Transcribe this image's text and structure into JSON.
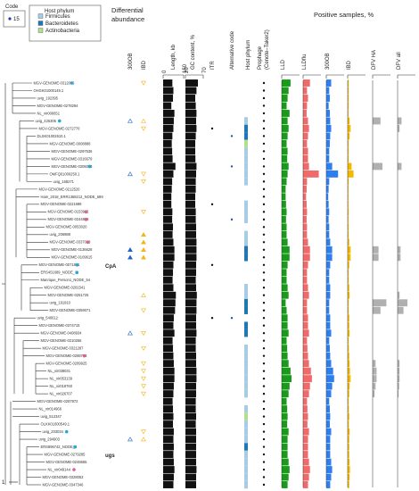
{
  "legend": {
    "code": {
      "title": "Code",
      "dot_value": "15"
    },
    "phylum": {
      "title": "Host phylum",
      "items": [
        {
          "label": "Firmicutes",
          "color": "#a6cde3"
        },
        {
          "label": "Bacteroidetes",
          "color": "#1f78b4"
        },
        {
          "label": "Actinobacteria",
          "color": "#b2df8a"
        }
      ]
    }
  },
  "headers": {
    "differential": "Differential\nabundance",
    "col_300ob": "300OB",
    "col_ibd": "IBD",
    "length": "Length, kb",
    "gc": "GC content, %",
    "itr": "ITR",
    "alt_code": "Alternative code",
    "host": "Host phylum",
    "prophage": "Prophage\n(Cenote–Taker2)",
    "positive": "Positive samples, %",
    "pos_cols": [
      "LLD",
      "LLDflu",
      "300OB",
      "IBD",
      "DFV HA",
      "DFV all"
    ]
  },
  "axes": {
    "length_ticks": [
      "0",
      "150"
    ],
    "gc_ticks": [
      "20",
      "70"
    ]
  },
  "annotations": {
    "cpa": "CpA",
    "ugs": "ugs",
    "scale": "1"
  },
  "colors": {
    "tree": "#333333",
    "bar": "#111111",
    "cyan_dot": "#29a8d8",
    "pink_dot": "#e0609b",
    "tri_blue": "#1f63c6",
    "tri_orange": "#f2b41a",
    "lld": "#1a9a1a",
    "lldflu": "#f06a6a",
    "ob300": "#2d7ff0",
    "ibd": "#f5b800",
    "dfv": "#b0b0b0",
    "label_purple": "#9a3dd6",
    "label_green": "#1e8a38",
    "label_red": "#d62020"
  },
  "genomes": [
    {
      "name": "MGV-GENOME-0312075",
      "code": "cyan",
      "ob": "",
      "ibd": "down",
      "len": 0.45,
      "gc": 0.7,
      "itr": false,
      "alt": false,
      "host": "",
      "pro": true,
      "p": [
        0.45,
        0.35,
        0.25,
        0.05,
        0,
        0
      ],
      "color": ""
    },
    {
      "name": "OHGK01000149.1",
      "code": "",
      "ob": "",
      "ibd": "",
      "len": 0.5,
      "gc": 0.62,
      "itr": false,
      "alt": false,
      "host": "",
      "pro": true,
      "p": [
        0.35,
        0.2,
        0.15,
        0.05,
        0,
        0
      ],
      "color": ""
    },
    {
      "name": "uvig_192395",
      "code": "",
      "ob": "",
      "ibd": "",
      "len": 0.48,
      "gc": 0.55,
      "itr": false,
      "alt": false,
      "host": "",
      "pro": true,
      "p": [
        0.3,
        0.25,
        0.18,
        0.05,
        0,
        0
      ],
      "color": ""
    },
    {
      "name": "MGV-GENOME-0278294",
      "code": "",
      "ob": "",
      "ibd": "",
      "len": 0.4,
      "gc": 0.58,
      "itr": false,
      "alt": false,
      "host": "",
      "pro": true,
      "p": [
        0.25,
        0.2,
        0.12,
        0.05,
        0,
        0
      ],
      "color": ""
    },
    {
      "name": "NL_vir006651",
      "code": "",
      "ob": "",
      "ibd": "",
      "len": 0.55,
      "gc": 0.62,
      "itr": false,
      "alt": false,
      "host": "",
      "pro": true,
      "p": [
        0.4,
        0.18,
        0.18,
        0.04,
        0,
        0
      ],
      "color": ""
    },
    {
      "name": "uvig_425305",
      "code": "cyan",
      "ob": "up_open",
      "ibd": "up_open",
      "len": 0.52,
      "gc": 0.6,
      "itr": false,
      "alt": false,
      "host": "firm",
      "pro": true,
      "p": [
        0.3,
        0.25,
        0.2,
        0.1,
        0.4,
        0.2
      ],
      "color": ""
    },
    {
      "name": "MGV-GENOME-0272770",
      "code": "",
      "ob": "",
      "ibd": "down",
      "len": 0.5,
      "gc": 0.62,
      "itr": true,
      "alt": false,
      "host": "bact",
      "pro": true,
      "p": [
        0.35,
        0.3,
        0.25,
        0.15,
        0,
        0.1
      ],
      "color": ""
    },
    {
      "name": "DLSK01002610.1",
      "code": "",
      "ob": "",
      "ibd": "",
      "len": 0.45,
      "gc": 0.58,
      "itr": false,
      "alt": true,
      "host": "bact",
      "pro": true,
      "p": [
        0.3,
        0.25,
        0.2,
        0.1,
        0,
        0
      ],
      "color": ""
    },
    {
      "name": "MGV-GENOME-0008888",
      "code": "",
      "ob": "",
      "ibd": "",
      "len": 0.42,
      "gc": 0.55,
      "itr": false,
      "alt": false,
      "host": "act",
      "pro": true,
      "p": [
        0.25,
        0.2,
        0.18,
        0.05,
        0,
        0
      ],
      "color": ""
    },
    {
      "name": "MGV-GENOME-0297536",
      "code": "",
      "ob": "",
      "ibd": "",
      "len": 0.44,
      "gc": 0.55,
      "itr": false,
      "alt": false,
      "host": "firm",
      "pro": true,
      "p": [
        0.3,
        0.25,
        0.15,
        0.05,
        0,
        0
      ],
      "color": ""
    },
    {
      "name": "MGV-GENOME-0316679",
      "code": "",
      "ob": "",
      "ibd": "",
      "len": 0.46,
      "gc": 0.56,
      "itr": false,
      "alt": false,
      "host": "firm",
      "pro": true,
      "p": [
        0.28,
        0.25,
        0.15,
        0.05,
        0,
        0
      ],
      "color": ""
    },
    {
      "name": "MGV-GENOME-0305083",
      "code": "cyan",
      "ob": "",
      "ibd": "",
      "len": 0.6,
      "gc": 0.62,
      "itr": false,
      "alt": true,
      "host": "firm",
      "pro": true,
      "p": [
        0.35,
        0.3,
        0.3,
        0.2,
        0.5,
        0.2
      ],
      "color": "purple"
    },
    {
      "name": "OMFQ01000250.1",
      "code": "",
      "ob": "up_open",
      "ibd": "down",
      "len": 0.5,
      "gc": 0.6,
      "itr": false,
      "alt": false,
      "host": "firm",
      "pro": true,
      "p": [
        0.3,
        0.8,
        0.6,
        0.3,
        0,
        0
      ],
      "color": ""
    },
    {
      "name": "uvig_168271",
      "code": "",
      "ob": "",
      "ibd": "down",
      "len": 0.44,
      "gc": 0.58,
      "itr": false,
      "alt": false,
      "host": "firm",
      "pro": true,
      "p": [
        0.25,
        0.2,
        0.15,
        0.05,
        0,
        0
      ],
      "color": ""
    },
    {
      "name": "MGV-GENOME-0212520",
      "code": "",
      "ob": "",
      "ibd": "",
      "len": 0.42,
      "gc": 0.58,
      "itr": false,
      "alt": false,
      "host": "",
      "pro": true,
      "p": [
        0.2,
        0.18,
        0.12,
        0.04,
        0,
        0
      ],
      "color": ""
    },
    {
      "name": "Ham_2018_ERR1368212_NODE_689",
      "code": "",
      "ob": "",
      "ibd": "",
      "len": 0.4,
      "gc": 0.55,
      "itr": false,
      "alt": false,
      "host": "",
      "pro": true,
      "p": [
        0.2,
        0.15,
        0.1,
        0.04,
        0,
        0
      ],
      "color": ""
    },
    {
      "name": "MGV-GENOME-0221689",
      "code": "",
      "ob": "",
      "ibd": "",
      "len": 0.4,
      "gc": 0.55,
      "itr": true,
      "alt": false,
      "host": "firm",
      "pro": true,
      "p": [
        0.22,
        0.18,
        0.12,
        0.04,
        0,
        0
      ],
      "color": ""
    },
    {
      "name": "MGV-GENOME-0153922",
      "code": "pink",
      "ob": "",
      "ibd": "down",
      "len": 0.45,
      "gc": 0.58,
      "itr": false,
      "alt": false,
      "host": "firm",
      "pro": true,
      "p": [
        0.25,
        0.2,
        0.15,
        0.05,
        0,
        0
      ],
      "color": ""
    },
    {
      "name": "MGV-GENOME-0244888",
      "code": "pink",
      "ob": "",
      "ibd": "",
      "len": 0.44,
      "gc": 0.58,
      "itr": false,
      "alt": true,
      "host": "firm",
      "pro": true,
      "p": [
        0.22,
        0.18,
        0.12,
        0.04,
        0,
        0
      ],
      "color": ""
    },
    {
      "name": "MGV-GENOME-0053020",
      "code": "",
      "ob": "",
      "ibd": "",
      "len": 0.48,
      "gc": 0.6,
      "itr": false,
      "alt": false,
      "host": "",
      "pro": true,
      "p": [
        0.25,
        0.2,
        0.15,
        0.05,
        0,
        0
      ],
      "color": ""
    },
    {
      "name": "uvig_206988",
      "code": "",
      "ob": "",
      "ibd": "up_solid",
      "len": 0.46,
      "gc": 0.6,
      "itr": false,
      "alt": false,
      "host": "firm",
      "pro": true,
      "p": [
        0.25,
        0.2,
        0.15,
        0.05,
        0,
        0
      ],
      "color": ""
    },
    {
      "name": "MGV-GENOME-0337028",
      "code": "pink",
      "ob": "",
      "ibd": "up_solid",
      "len": 0.5,
      "gc": 0.62,
      "itr": false,
      "alt": false,
      "host": "firm",
      "pro": true,
      "p": [
        0.3,
        0.25,
        0.2,
        0.08,
        0,
        0
      ],
      "color": ""
    },
    {
      "name": "MGV-GENOME-0136628",
      "code": "",
      "ob": "up_solid",
      "ibd": "up_solid",
      "len": 0.55,
      "gc": 0.62,
      "itr": false,
      "alt": false,
      "host": "bact",
      "pro": true,
      "p": [
        0.4,
        0.35,
        0.3,
        0.15,
        0.3,
        0.15
      ],
      "color": ""
    },
    {
      "name": "MGV-GENOME-0109615",
      "code": "",
      "ob": "up_solid",
      "ibd": "up_solid",
      "len": 0.55,
      "gc": 0.62,
      "itr": false,
      "alt": false,
      "host": "bact",
      "pro": true,
      "p": [
        0.4,
        0.35,
        0.3,
        0.15,
        0.3,
        0.15
      ],
      "color": ""
    },
    {
      "name": "MGV-GENOME-0071861",
      "code": "cyan",
      "ob": "",
      "ibd": "",
      "len": 0.5,
      "gc": 0.6,
      "itr": true,
      "alt": false,
      "host": "",
      "pro": true,
      "p": [
        0.3,
        0.25,
        0.2,
        0.08,
        0,
        0
      ],
      "color": ""
    },
    {
      "name": "ERS451689_NODE_11",
      "code": "cyan",
      "ob": "",
      "ibd": "",
      "len": 0.48,
      "gc": 0.6,
      "itr": false,
      "alt": false,
      "host": "",
      "pro": true,
      "p": [
        0.25,
        0.2,
        0.15,
        0.05,
        0,
        0
      ],
      "color": ""
    },
    {
      "name": "Manrique_Person1_NODE_54",
      "code": "",
      "ob": "",
      "ibd": "",
      "len": 0.46,
      "gc": 0.58,
      "itr": false,
      "alt": false,
      "host": "",
      "pro": true,
      "p": [
        0.25,
        0.2,
        0.15,
        0.05,
        0,
        0
      ],
      "color": ""
    },
    {
      "name": "MGV-GENOME-0281541",
      "code": "",
      "ob": "",
      "ibd": "",
      "len": 0.5,
      "gc": 0.6,
      "itr": false,
      "alt": false,
      "host": "firm",
      "pro": true,
      "p": [
        0.3,
        0.25,
        0.2,
        0.08,
        0,
        0
      ],
      "color": ""
    },
    {
      "name": "MGV-GENOME-0251725",
      "code": "",
      "ob": "",
      "ibd": "up_open",
      "len": 0.62,
      "gc": 0.64,
      "itr": false,
      "alt": false,
      "host": "firm",
      "pro": true,
      "p": [
        0.35,
        0.3,
        0.2,
        0.1,
        0,
        0.1
      ],
      "color": "green"
    },
    {
      "name": "uvig_191910",
      "code": "",
      "ob": "",
      "ibd": "",
      "len": 0.6,
      "gc": 0.62,
      "itr": false,
      "alt": false,
      "host": "bact",
      "pro": true,
      "p": [
        0.2,
        0.2,
        0.15,
        0.05,
        0.7,
        0.5
      ],
      "color": "red"
    },
    {
      "name": "MGV-GENOME-0359071",
      "code": "",
      "ob": "",
      "ibd": "down",
      "len": 0.58,
      "gc": 0.62,
      "itr": false,
      "alt": false,
      "host": "bact",
      "pro": true,
      "p": [
        0.25,
        0.2,
        0.15,
        0.05,
        0.4,
        0.3
      ],
      "color": "red"
    },
    {
      "name": "uvig_540612",
      "code": "",
      "ob": "",
      "ibd": "",
      "len": 0.52,
      "gc": 0.6,
      "itr": true,
      "alt": true,
      "host": "",
      "pro": true,
      "p": [
        0.3,
        0.25,
        0.2,
        0.08,
        0,
        0
      ],
      "color": ""
    },
    {
      "name": "MGV-GENOME-0374715",
      "code": "",
      "ob": "",
      "ibd": "",
      "len": 0.5,
      "gc": 0.6,
      "itr": false,
      "alt": false,
      "host": "bact",
      "pro": true,
      "p": [
        0.3,
        0.25,
        0.2,
        0.08,
        0,
        0
      ],
      "color": ""
    },
    {
      "name": "MGV-GENOME-0408934",
      "code": "",
      "ob": "up_open",
      "ibd": "down",
      "len": 0.55,
      "gc": 0.62,
      "itr": false,
      "alt": false,
      "host": "bact",
      "pro": true,
      "p": [
        0.35,
        0.3,
        0.25,
        0.1,
        0,
        0
      ],
      "color": ""
    },
    {
      "name": "MGV-GENOME-0210266",
      "code": "",
      "ob": "",
      "ibd": "",
      "len": 0.46,
      "gc": 0.58,
      "itr": false,
      "alt": false,
      "host": "",
      "pro": true,
      "p": [
        0.25,
        0.2,
        0.15,
        0.05,
        0,
        0
      ],
      "color": ""
    },
    {
      "name": "MGV-GENOME-0321287",
      "code": "",
      "ob": "",
      "ibd": "down",
      "len": 0.48,
      "gc": 0.58,
      "itr": false,
      "alt": false,
      "host": "firm",
      "pro": true,
      "p": [
        0.28,
        0.22,
        0.18,
        0.06,
        0,
        0
      ],
      "color": ""
    },
    {
      "name": "MGV-GENOME-0288753",
      "code": "pink",
      "ob": "",
      "ibd": "",
      "len": 0.5,
      "gc": 0.6,
      "itr": false,
      "alt": false,
      "host": "firm",
      "pro": true,
      "p": [
        0.3,
        0.25,
        0.2,
        0.08,
        0,
        0
      ],
      "color": ""
    },
    {
      "name": "MGV-GENOME-0289925",
      "code": "",
      "ob": "",
      "ibd": "down",
      "len": 0.52,
      "gc": 0.6,
      "itr": false,
      "alt": false,
      "host": "firm",
      "pro": true,
      "p": [
        0.35,
        0.3,
        0.25,
        0.1,
        0.15,
        0.1
      ],
      "color": ""
    },
    {
      "name": "NL_vir038031",
      "code": "",
      "ob": "",
      "ibd": "down",
      "len": 0.55,
      "gc": 0.62,
      "itr": false,
      "alt": false,
      "host": "firm",
      "pro": true,
      "p": [
        0.45,
        0.4,
        0.35,
        0.12,
        0.2,
        0.1
      ],
      "color": ""
    },
    {
      "name": "NL_vir053139",
      "code": "",
      "ob": "",
      "ibd": "down",
      "len": 0.55,
      "gc": 0.62,
      "itr": false,
      "alt": false,
      "host": "firm",
      "pro": true,
      "p": [
        0.5,
        0.45,
        0.4,
        0.15,
        0.2,
        0.1
      ],
      "color": ""
    },
    {
      "name": "NL_vir018760",
      "code": "",
      "ob": "",
      "ibd": "down",
      "len": 0.52,
      "gc": 0.6,
      "itr": false,
      "alt": false,
      "host": "firm",
      "pro": true,
      "p": [
        0.4,
        0.35,
        0.3,
        0.1,
        0.15,
        0.08
      ],
      "color": ""
    },
    {
      "name": "NL_vir026707",
      "code": "",
      "ob": "",
      "ibd": "down",
      "len": 0.5,
      "gc": 0.6,
      "itr": false,
      "alt": false,
      "host": "firm",
      "pro": true,
      "p": [
        0.35,
        0.3,
        0.25,
        0.08,
        0.1,
        0.05
      ],
      "color": ""
    },
    {
      "name": "MGV-GENOME-0287872",
      "code": "",
      "ob": "",
      "ibd": "",
      "len": 0.46,
      "gc": 0.58,
      "itr": false,
      "alt": false,
      "host": "",
      "pro": true,
      "p": [
        0.25,
        0.2,
        0.15,
        0.05,
        0,
        0
      ],
      "color": ""
    },
    {
      "name": "NL_vir014966",
      "code": "",
      "ob": "",
      "ibd": "",
      "len": 0.48,
      "gc": 0.58,
      "itr": false,
      "alt": false,
      "host": "firm",
      "pro": true,
      "p": [
        0.28,
        0.22,
        0.18,
        0.06,
        0,
        0
      ],
      "color": ""
    },
    {
      "name": "uvig_512347",
      "code": "",
      "ob": "",
      "ibd": "",
      "len": 0.5,
      "gc": 0.6,
      "itr": false,
      "alt": false,
      "host": "act",
      "pro": true,
      "p": [
        0.3,
        0.25,
        0.2,
        0.08,
        0,
        0
      ],
      "color": ""
    },
    {
      "name": "OLKK01000549.1",
      "code": "",
      "ob": "",
      "ibd": "",
      "len": 0.48,
      "gc": 0.58,
      "itr": false,
      "alt": false,
      "host": "firm",
      "pro": true,
      "p": [
        0.28,
        0.22,
        0.18,
        0.06,
        0,
        0
      ],
      "color": ""
    },
    {
      "name": "uvig_203034",
      "code": "cyan",
      "ob": "",
      "ibd": "down",
      "len": 0.52,
      "gc": 0.6,
      "itr": false,
      "alt": false,
      "host": "firm",
      "pro": true,
      "p": [
        0.35,
        0.3,
        0.25,
        0.1,
        0,
        0
      ],
      "color": ""
    },
    {
      "name": "uvig_294903",
      "code": "",
      "ob": "up_open",
      "ibd": "up_open",
      "len": 0.5,
      "gc": 0.6,
      "itr": false,
      "alt": false,
      "host": "firm",
      "pro": true,
      "p": [
        0.3,
        0.25,
        0.2,
        0.08,
        0,
        0
      ],
      "color": ""
    },
    {
      "name": "ERS896742_NODE_4",
      "code": "cyan",
      "ob": "",
      "ibd": "",
      "len": 0.52,
      "gc": 0.6,
      "itr": false,
      "alt": false,
      "host": "bact",
      "pro": true,
      "p": [
        0.3,
        0.25,
        0.2,
        0.08,
        0,
        0
      ],
      "color": ""
    },
    {
      "name": "MGV-GENOME-0279285",
      "code": "",
      "ob": "",
      "ibd": "",
      "len": 0.5,
      "gc": 0.6,
      "itr": false,
      "alt": false,
      "host": "firm",
      "pro": true,
      "p": [
        0.3,
        0.25,
        0.2,
        0.08,
        0,
        0
      ],
      "color": ""
    },
    {
      "name": "MGV-GENOME-0248655",
      "code": "",
      "ob": "",
      "ibd": "",
      "len": 0.52,
      "gc": 0.6,
      "itr": false,
      "alt": false,
      "host": "firm",
      "pro": true,
      "p": [
        0.35,
        0.3,
        0.25,
        0.1,
        0,
        0
      ],
      "color": ""
    },
    {
      "name": "NL_vir049144",
      "code": "pink",
      "ob": "",
      "ibd": "",
      "len": 0.55,
      "gc": 0.62,
      "itr": false,
      "alt": false,
      "host": "firm",
      "pro": true,
      "p": [
        0.4,
        0.35,
        0.3,
        0.12,
        0,
        0
      ],
      "color": ""
    },
    {
      "name": "MGV-GENOME-0328053",
      "code": "",
      "ob": "",
      "ibd": "",
      "len": 0.52,
      "gc": 0.6,
      "itr": false,
      "alt": false,
      "host": "firm",
      "pro": true,
      "p": [
        0.35,
        0.3,
        0.25,
        0.1,
        0,
        0
      ],
      "color": ""
    },
    {
      "name": "MGV-GENOME-0347346",
      "code": "",
      "ob": "",
      "ibd": "",
      "len": 0.5,
      "gc": 0.6,
      "itr": false,
      "alt": false,
      "host": "firm",
      "pro": true,
      "p": [
        0.3,
        0.25,
        0.2,
        0.08,
        0,
        0
      ],
      "color": ""
    }
  ]
}
